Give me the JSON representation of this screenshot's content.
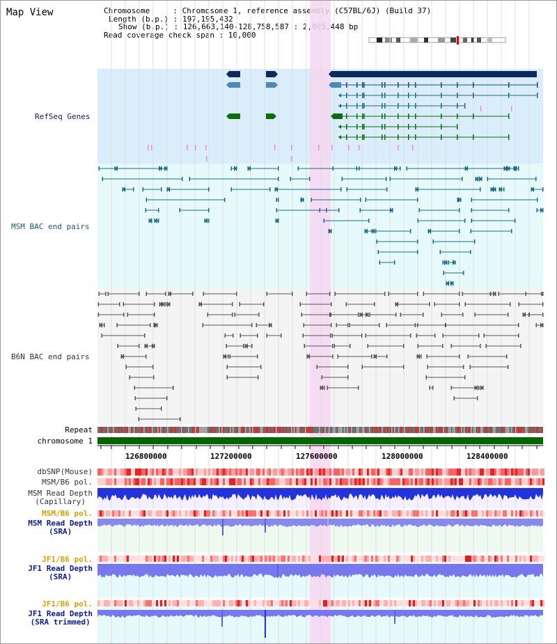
{
  "title": "Map View",
  "info": {
    "line1": "Chromosome     : Chromosome 1, reference assembly (C57BL/6J) (Build 37)",
    "line2": "Length (b.p.) : 197,195,432",
    "line3": "Show (b.p.) : 126,663,140-128,758,587 : 2,095,448 bp",
    "line4": "Read coverage check span : 10,000"
  },
  "tracks": {
    "refseq": "RefSeq Genes",
    "msm_bac": "MSM BAC end pairs",
    "b6n_bac": "B6N BAC end pairs",
    "repeat": "Repeat",
    "chromosome": "chromosome 1",
    "dbsnp": "dbSNP(Mouse)",
    "msm_b6_pol": "MSM/B6 pol.",
    "msm_read_depth_cap_1": "MSM Read Depth",
    "msm_read_depth_cap_2": "(Capillary)",
    "msm_b6_pol_2": "MSM/B6 pol.",
    "msm_read_depth_sra_1": "MSM Read Depth",
    "msm_read_depth_sra_2": "(SRA)",
    "jf1_b6_pol_1": "JF1/B6 pol.",
    "jf1_read_depth_sra_1": "JF1 Read Depth",
    "jf1_read_depth_sra_2": "(SRA)",
    "jf1_b6_pol_2": "JF1/B6 pol.",
    "jf1_read_depth_trim_1": "JF1 Read Depth",
    "jf1_read_depth_trim_2": "(SRA trimmed)"
  },
  "axis": {
    "ticks": [
      "126800000",
      "127200000",
      "127600000",
      "128000000",
      "128400000"
    ]
  },
  "colors": {
    "refseq_bg": "#d9eefa",
    "msm_bg": "#e6f9fb",
    "b6n_bg": "#f4f4f4",
    "highlight": "#f7d6f1",
    "gene_navy": "#0b2a5e",
    "gene_blue": "#4a8ab8",
    "gene_green": "#0a6e0a",
    "chromosome_bar": "#006600",
    "label_blue": "#0a1a9a",
    "label_orange": "#d9a000",
    "label_teal": "#1a5a7a"
  }
}
